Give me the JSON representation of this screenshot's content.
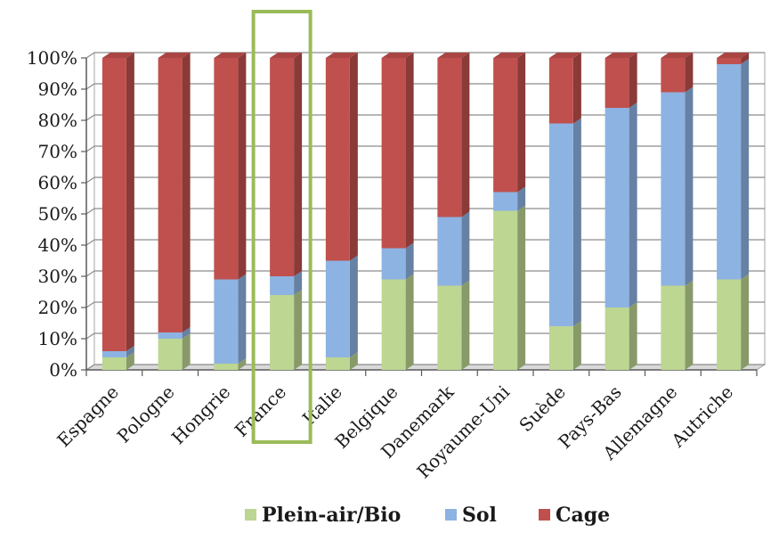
{
  "chart_data": {
    "type": "bar",
    "stacked": true,
    "percent_stacked": true,
    "three_d": true,
    "categories": [
      "Espagne",
      "Pologne",
      "Hongrie",
      "France",
      "Italie",
      "Belgique",
      "Danemark",
      "Royaume-Uni",
      "Suède",
      "Pays-Bas",
      "Allemagne",
      "Autriche"
    ],
    "series": [
      {
        "name": "Plein-air/Bio",
        "color": "#bdd692",
        "values": [
          4,
          10,
          2,
          24,
          4,
          29,
          27,
          51,
          14,
          20,
          27,
          29
        ]
      },
      {
        "name": "Sol",
        "color": "#8db3e2",
        "values": [
          2,
          2,
          27,
          6,
          31,
          10,
          22,
          6,
          65,
          64,
          62,
          69
        ]
      },
      {
        "name": "Cage",
        "color": "#c0504d",
        "values": [
          94,
          88,
          71,
          70,
          65,
          61,
          51,
          43,
          21,
          16,
          11,
          2
        ]
      }
    ],
    "ylim": [
      0,
      100
    ],
    "yticks": [
      "0%",
      "10%",
      "20%",
      "30%",
      "40%",
      "50%",
      "60%",
      "70%",
      "80%",
      "90%",
      "100%"
    ],
    "grid": true,
    "legend_position": "bottom",
    "highlighted_category": "France",
    "highlight_color": "#9bbb59"
  }
}
